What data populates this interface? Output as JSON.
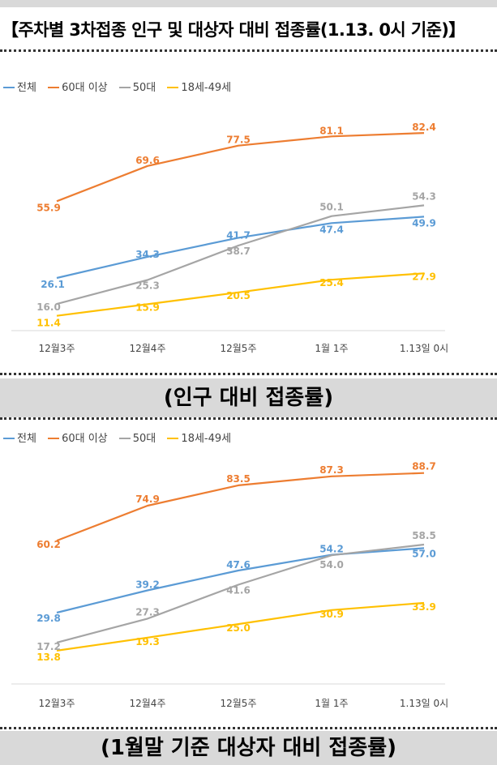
{
  "title": "【주차별 3차접종 인구 및 대상자 대비 접종률(1.13. 0시 기준)】",
  "caption1": "(인구 대비 접종률)",
  "caption2": "(1월말 기준 대상자 대비 접종률)",
  "colors": {
    "total": "#5b9bd5",
    "age60plus": "#ed7d31",
    "age50s": "#a5a5a5",
    "age18to49": "#ffc000"
  },
  "legend": [
    "전체",
    "60대 이상",
    "50대",
    "18세-49세"
  ],
  "chart_data": [
    {
      "type": "line",
      "title": "인구 대비 접종률",
      "categories": [
        "12월3주",
        "12월4주",
        "12월5주",
        "1월 1주",
        "1.13일 0시"
      ],
      "ylim": [
        0,
        100
      ],
      "series": [
        {
          "name": "전체",
          "values": [
            26.1,
            34.3,
            41.7,
            47.4,
            49.9
          ]
        },
        {
          "name": "60대 이상",
          "values": [
            55.9,
            69.6,
            77.5,
            81.1,
            82.4
          ]
        },
        {
          "name": "50대",
          "values": [
            16.0,
            25.3,
            38.7,
            50.1,
            54.3
          ]
        },
        {
          "name": "18세-49세",
          "values": [
            11.4,
            15.9,
            20.5,
            25.4,
            27.9
          ]
        }
      ]
    },
    {
      "type": "line",
      "title": "1월말 기준 대상자 대비 접종률",
      "categories": [
        "12월3주",
        "12월4주",
        "12월5주",
        "1월 1주",
        "1.13일 0시"
      ],
      "ylim": [
        0,
        100
      ],
      "series": [
        {
          "name": "전체",
          "values": [
            29.8,
            39.2,
            47.6,
            54.2,
            57.0
          ]
        },
        {
          "name": "60대 이상",
          "values": [
            60.2,
            74.9,
            83.5,
            87.3,
            88.7
          ]
        },
        {
          "name": "50대",
          "values": [
            17.2,
            27.3,
            41.6,
            54.0,
            58.5
          ]
        },
        {
          "name": "18세-49세",
          "values": [
            13.8,
            19.3,
            25.0,
            30.9,
            33.9
          ]
        }
      ]
    }
  ]
}
